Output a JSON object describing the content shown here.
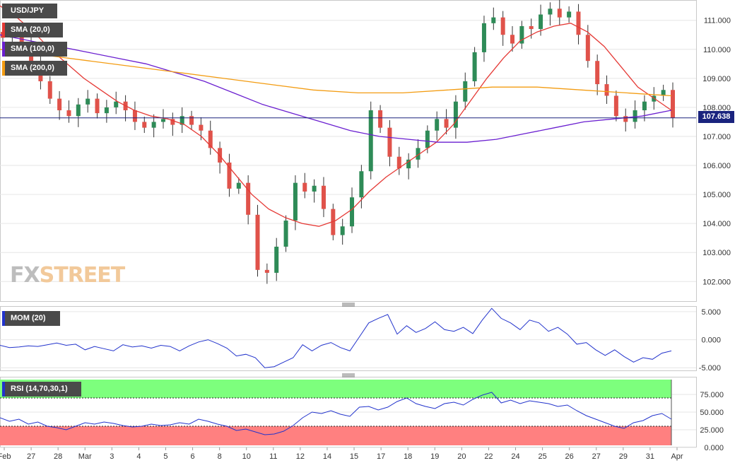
{
  "symbol": "USD/JPY",
  "legend": {
    "sma20": "SMA (20,0)",
    "sma100": "SMA (100,0)",
    "sma200": "SMA (200,0)",
    "mom": "MOM (20)",
    "rsi": "RSI (14,70,30,1)"
  },
  "watermark": {
    "fx": "FX",
    "street": "STREET"
  },
  "last_price": "107.638",
  "colors": {
    "bull": "#2e8b57",
    "bear": "#e0524a",
    "sma20": "#e53935",
    "sma100": "#6a1fd0",
    "sma200": "#f39c12",
    "mom": "#2233cc",
    "rsi": "#2233cc",
    "overbought_band": "#7dff7d",
    "oversold_band": "#ff8080",
    "price_line": "#1a237e"
  },
  "chart_data": [
    {
      "type": "candlestick",
      "title": "USD/JPY",
      "x_tick_labels": [
        "Feb",
        "27",
        "28",
        "Mar",
        "3",
        "4",
        "5",
        "6",
        "8",
        "10",
        "11",
        "12",
        "14",
        "15",
        "17",
        "18",
        "19",
        "20",
        "22",
        "24",
        "25",
        "26",
        "27",
        "29",
        "31",
        "Apr"
      ],
      "y_ticks": [
        102.0,
        103.0,
        104.0,
        105.0,
        106.0,
        107.0,
        108.0,
        109.0,
        110.0,
        111.0
      ],
      "ylim": [
        101.3,
        111.7
      ],
      "current_price": 107.638,
      "ohlc_close_path": [
        110.4,
        110.5,
        110.2,
        109.6,
        108.9,
        108.3,
        107.9,
        107.7,
        108.1,
        108.3,
        107.8,
        108.0,
        108.2,
        107.9,
        107.5,
        107.3,
        107.5,
        107.6,
        107.4,
        107.7,
        107.4,
        107.2,
        106.6,
        106.1,
        105.2,
        105.4,
        104.3,
        102.4,
        102.3,
        103.2,
        104.1,
        105.4,
        105.1,
        105.3,
        104.5,
        103.6,
        103.9,
        104.9,
        105.8,
        107.9,
        107.3,
        106.3,
        105.9,
        106.2,
        106.6,
        107.2,
        107.6,
        107.3,
        108.2,
        108.9,
        109.9,
        110.9,
        111.1,
        110.5,
        110.2,
        110.8,
        110.7,
        111.2,
        111.4,
        111.1,
        111.3,
        110.5,
        109.6,
        108.8,
        108.4,
        107.7,
        107.5,
        107.9,
        108.2,
        108.4,
        108.6,
        107.638
      ],
      "series": [
        {
          "name": "SMA (20,0)",
          "values": [
            111.5,
            111.1,
            110.6,
            110.0,
            109.5,
            109.0,
            108.6,
            108.2,
            107.9,
            107.7,
            107.6,
            107.4,
            107.0,
            106.4,
            105.7,
            105.0,
            104.5,
            104.2,
            104.0,
            103.9,
            104.1,
            104.5,
            105.1,
            105.6,
            106.0,
            106.4,
            106.8,
            107.4,
            108.2,
            109.0,
            109.7,
            110.3,
            110.6,
            110.8,
            110.9,
            110.6,
            110.1,
            109.4,
            108.7,
            108.3,
            107.9
          ]
        },
        {
          "name": "SMA (100,0)",
          "values": [
            110.5,
            110.3,
            110.1,
            109.9,
            109.7,
            109.5,
            109.2,
            108.9,
            108.5,
            108.1,
            107.8,
            107.5,
            107.2,
            107.0,
            106.9,
            106.8,
            106.8,
            106.9,
            107.1,
            107.3,
            107.5,
            107.6,
            107.7,
            107.9
          ]
        },
        {
          "name": "SMA (200,0)",
          "values": [
            110.0,
            109.8,
            109.6,
            109.4,
            109.2,
            109.0,
            108.8,
            108.6,
            108.5,
            108.5,
            108.6,
            108.7,
            108.7,
            108.6,
            108.5,
            108.4
          ]
        }
      ]
    },
    {
      "type": "line",
      "title": "MOM (20)",
      "y_ticks": [
        5.0,
        0.0,
        -5.0
      ],
      "ylim": [
        -5.6,
        6.0
      ],
      "series": [
        {
          "name": "MOM (20)",
          "values": [
            -1.0,
            -1.4,
            -1.3,
            -1.1,
            -1.2,
            -0.9,
            -0.6,
            -1.0,
            -0.8,
            -1.8,
            -1.2,
            -1.6,
            -2.0,
            -0.9,
            -1.3,
            -1.1,
            -1.5,
            -1.0,
            -1.2,
            -2.0,
            -1.1,
            -0.4,
            0.0,
            -0.7,
            -1.5,
            -2.9,
            -2.6,
            -3.2,
            -5.0,
            -4.8,
            -4.0,
            -3.2,
            -0.9,
            -2.0,
            -1.0,
            -0.5,
            -1.4,
            -2.0,
            0.5,
            3.0,
            3.8,
            4.5,
            1.0,
            2.5,
            1.3,
            2.0,
            3.2,
            1.8,
            1.5,
            2.2,
            1.1,
            3.5,
            5.6,
            3.8,
            3.0,
            1.8,
            3.5,
            3.0,
            1.5,
            2.2,
            1.0,
            -0.8,
            -0.5,
            -1.8,
            -2.8,
            -1.8,
            -3.0,
            -4.0,
            -3.2,
            -3.5,
            -2.4,
            -2.0
          ]
        }
      ]
    },
    {
      "type": "line",
      "title": "RSI (14,70,30,1)",
      "y_ticks": [
        75.0,
        50.0,
        25.0,
        0.0
      ],
      "ylim": [
        0,
        100
      ],
      "overbought": 70,
      "oversold": 30,
      "series": [
        {
          "name": "RSI (14,70,30,1)",
          "values": [
            42,
            37,
            40,
            33,
            36,
            30,
            28,
            25,
            30,
            35,
            33,
            36,
            34,
            31,
            29,
            30,
            33,
            31,
            32,
            35,
            33,
            40,
            37,
            33,
            30,
            24,
            26,
            22,
            18,
            19,
            23,
            31,
            42,
            50,
            48,
            52,
            47,
            44,
            57,
            58,
            53,
            57,
            65,
            70,
            62,
            58,
            55,
            62,
            64,
            60,
            68,
            74,
            78,
            63,
            67,
            62,
            66,
            64,
            62,
            58,
            60,
            52,
            45,
            40,
            35,
            30,
            27,
            35,
            38,
            45,
            48,
            40
          ]
        }
      ]
    }
  ]
}
